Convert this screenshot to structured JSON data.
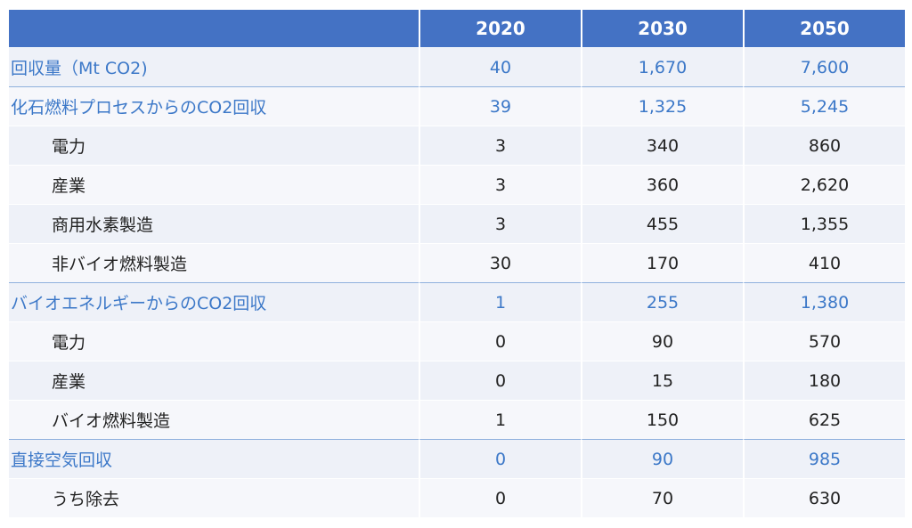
{
  "columns": [
    "",
    "2020",
    "2030",
    "2050"
  ],
  "rows": [
    {
      "label": "回収量（Mt CO2)",
      "values": [
        "40",
        "1,670",
        "7,600"
      ]
    },
    {
      "label": "化石燃料プロセスからのCO2回収",
      "values": [
        "39",
        "1,325",
        "5,245"
      ]
    },
    {
      "label": "電力",
      "values": [
        "3",
        "340",
        "860"
      ]
    },
    {
      "label": "産業",
      "values": [
        "3",
        "360",
        "2,620"
      ]
    },
    {
      "label": "商用水素製造",
      "values": [
        "3",
        "455",
        "1,355"
      ]
    },
    {
      "label": "非バイオ燃料製造",
      "values": [
        "30",
        "170",
        "410"
      ]
    },
    {
      "label": "バイオエネルギーからのCO2回収",
      "values": [
        "1",
        "255",
        "1,380"
      ]
    },
    {
      "label": "電力",
      "values": [
        "0",
        "90",
        "570"
      ]
    },
    {
      "label": "産業",
      "values": [
        "0",
        "15",
        "180"
      ]
    },
    {
      "label": "バイオ燃料製造",
      "values": [
        "1",
        "150",
        "625"
      ]
    },
    {
      "label": "直接空気回収",
      "values": [
        "0",
        "90",
        "985"
      ]
    },
    {
      "label": "うち除去",
      "values": [
        "0",
        "70",
        "630"
      ]
    }
  ],
  "colors": {
    "header_bg": "#4472c4",
    "section_text": "#3c78c8",
    "row_odd": "#eef1f8",
    "row_even": "#f6f7fb"
  }
}
